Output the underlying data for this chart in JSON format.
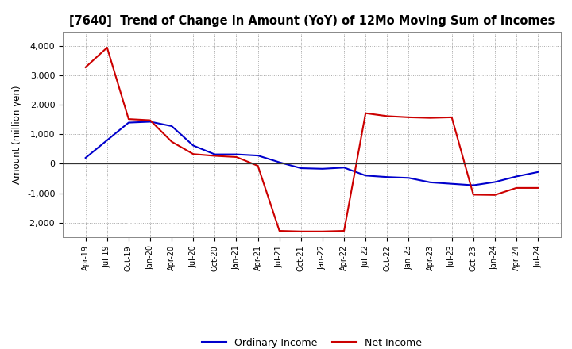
{
  "title": "[7640]  Trend of Change in Amount (YoY) of 12Mo Moving Sum of Incomes",
  "ylabel": "Amount (million yen)",
  "ylim": [
    -2500,
    4500
  ],
  "yticks": [
    -2000,
    -1000,
    0,
    1000,
    2000,
    3000,
    4000
  ],
  "background_color": "#ffffff",
  "ordinary_income_color": "#0000cc",
  "net_income_color": "#cc0000",
  "x_labels": [
    "Apr-19",
    "Jul-19",
    "Oct-19",
    "Jan-20",
    "Apr-20",
    "Jul-20",
    "Oct-20",
    "Jan-21",
    "Apr-21",
    "Jul-21",
    "Oct-21",
    "Jan-22",
    "Apr-22",
    "Jul-22",
    "Oct-22",
    "Jan-23",
    "Apr-23",
    "Jul-23",
    "Oct-23",
    "Jan-24",
    "Apr-24",
    "Jul-24"
  ],
  "ordinary_income": [
    200,
    800,
    1400,
    1430,
    1280,
    620,
    320,
    320,
    280,
    50,
    -150,
    -170,
    -130,
    -400,
    -450,
    -480,
    -630,
    -680,
    -730,
    -620,
    -430,
    -280
  ],
  "net_income": [
    3280,
    3950,
    1520,
    1480,
    750,
    330,
    270,
    230,
    -70,
    -2280,
    -2300,
    -2300,
    -2280,
    1720,
    1620,
    1580,
    1560,
    1580,
    -1050,
    -1060,
    -820,
    -820
  ]
}
